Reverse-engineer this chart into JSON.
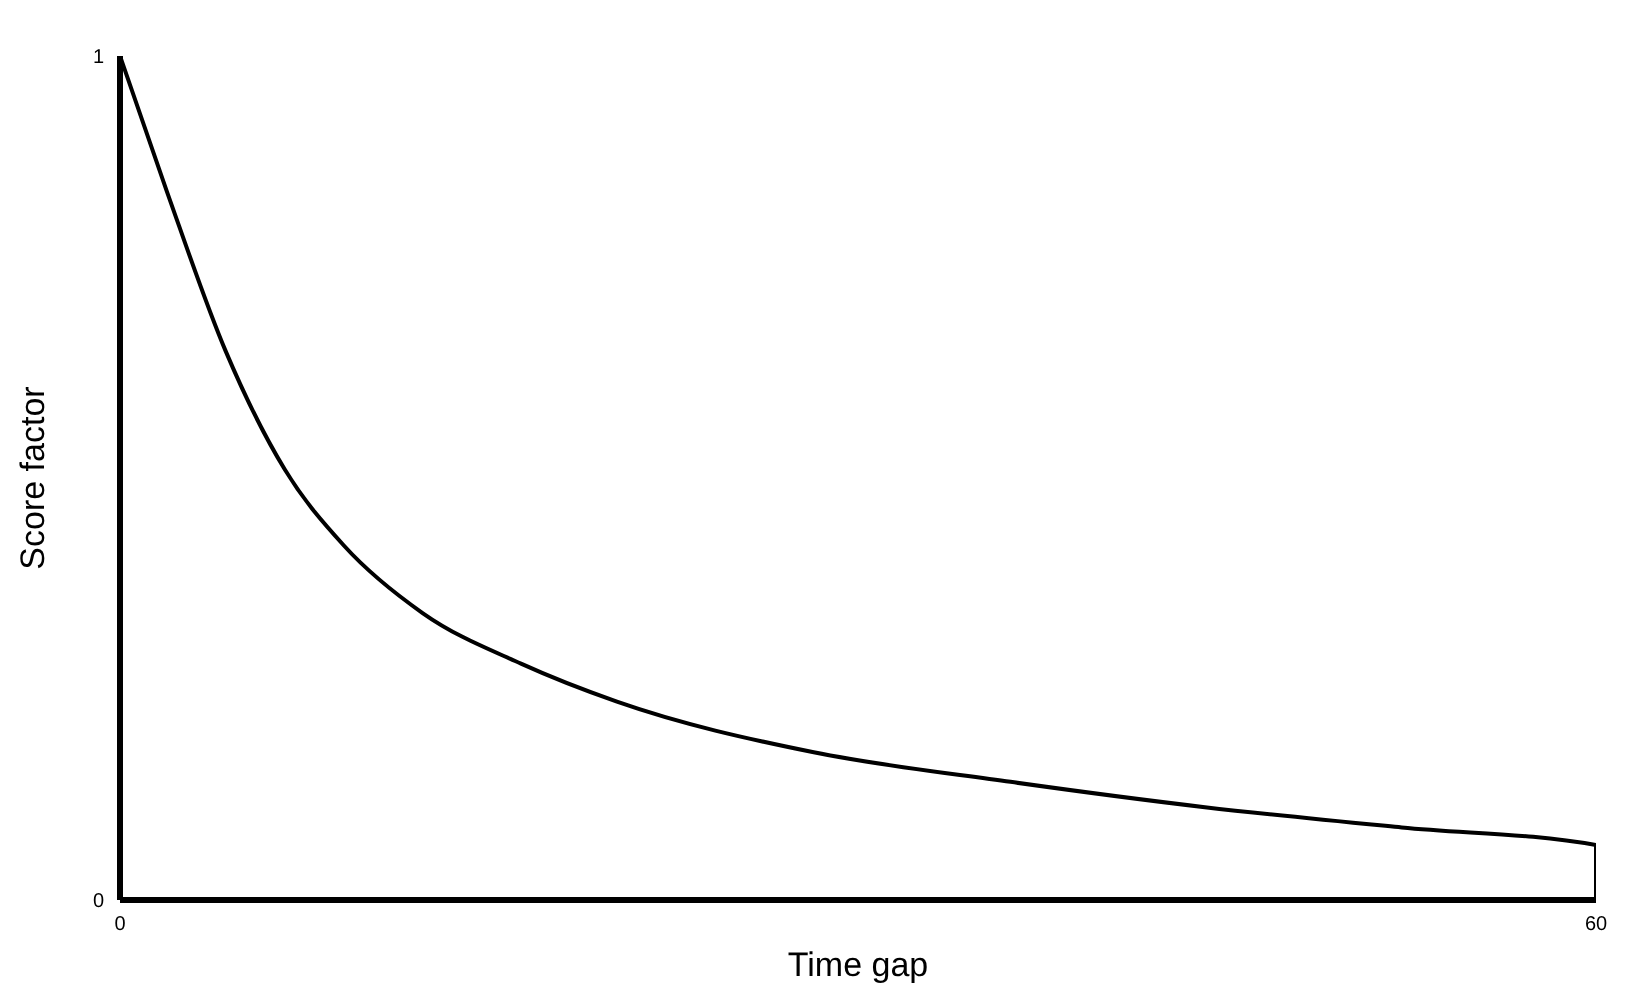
{
  "chart_data": {
    "type": "line",
    "xlabel": "Time gap",
    "ylabel": "Score factor",
    "x": [
      0,
      1.9,
      4.3,
      6.7,
      9.1,
      12.3,
      16.3,
      20.2,
      28.2,
      36.2,
      44.1,
      52.1,
      60,
      60
    ],
    "values": [
      1,
      0.84,
      0.65,
      0.51,
      0.42,
      0.34,
      0.28,
      0.235,
      0.175,
      0.14,
      0.11,
      0.086,
      0.065,
      0
    ],
    "color": "#000000",
    "xlim": [
      0,
      60
    ],
    "ylim": [
      0,
      1
    ],
    "xticks": [
      0,
      60
    ],
    "yticks": [
      0,
      1
    ],
    "marker": "none",
    "line_style": "solid"
  }
}
